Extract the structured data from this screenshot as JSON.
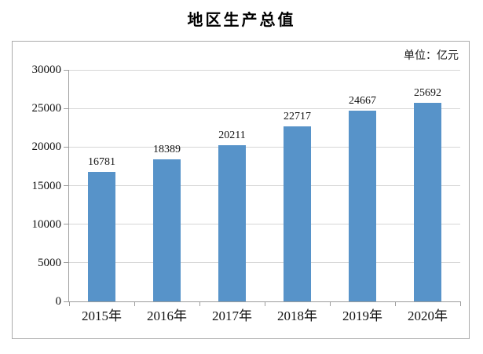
{
  "title": "地区生产总值",
  "unit_label": "单位：亿元",
  "colors": {
    "bar": "#5793c9",
    "gridline": "#d6d6d6",
    "axis": "#9c9c9c",
    "frame": "#ababab",
    "text": "#111111"
  },
  "chart_data": {
    "type": "bar",
    "title": "地区生产总值",
    "unit": "单位：亿元",
    "categories": [
      "2015年",
      "2016年",
      "2017年",
      "2018年",
      "2019年",
      "2020年"
    ],
    "values": [
      16781,
      18389,
      20211,
      22717,
      24667,
      25692
    ],
    "xlabel": "",
    "ylabel": "",
    "ylim": [
      0,
      30000
    ],
    "ytick_step": 5000,
    "yticks": [
      0,
      5000,
      10000,
      15000,
      20000,
      25000,
      30000
    ],
    "grid": true,
    "data_labels": true,
    "legend": "none"
  }
}
